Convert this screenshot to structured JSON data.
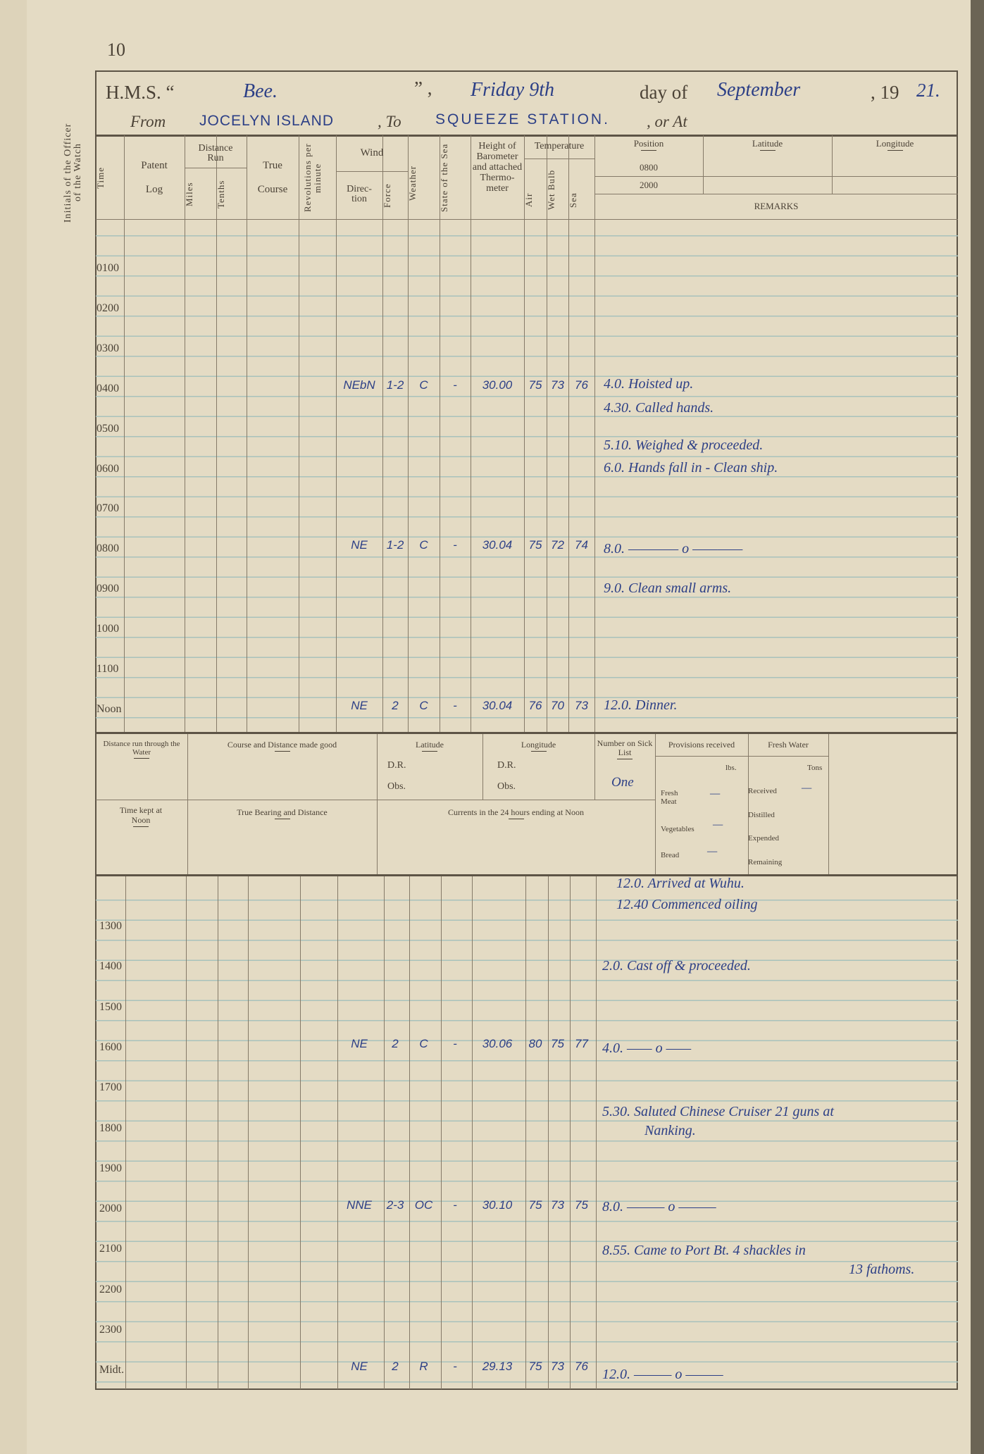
{
  "page_number": "10",
  "side_label": "Initials of the Officer of the Watch",
  "title": {
    "hms_label": "H.M.S. “",
    "ship_name": "Bee.",
    "close_quote": "” ,",
    "weekday_date": "Friday 9th",
    "day_of_label": "day of",
    "month": "September",
    "year_prefix": ", 19",
    "year_suffix": "21."
  },
  "route": {
    "from_label": "From",
    "from_value": "JOCELYN ISLAND",
    "to_label": ", To",
    "to_value": "SQUEEZE STATION.",
    "or_at_label": ", or At"
  },
  "headers": {
    "time": "Time",
    "patent_log": "Patent",
    "patent_log2": "Log",
    "distance_run": "Distance Run",
    "miles": "Miles",
    "tenths": "Tenths",
    "true_course": "True",
    "true_course2": "Course",
    "revolutions": "Revolutions per minute",
    "wind": "Wind",
    "direction": "Direc-tion",
    "force": "Force",
    "weather": "Weather",
    "state_of_sea": "State of the Sea",
    "barometer": "Height of Barometer and attached Thermo-meter",
    "temperature": "Temperature",
    "air": "Air",
    "wet_bulb": "Wet Bulb",
    "sea": "Sea",
    "position": "Position",
    "pos_0800": "0800",
    "pos_2000": "2000",
    "latitude": "Latitude",
    "longitude": "Longitude",
    "remarks": "REMARKS"
  },
  "hours_am": [
    "0100",
    "0200",
    "0300",
    "0400",
    "0500",
    "0600",
    "0700",
    "0800",
    "0900",
    "1000",
    "1100",
    "Noon"
  ],
  "hours_pm": [
    "1300",
    "1400",
    "1500",
    "1600",
    "1700",
    "1800",
    "1900",
    "2000",
    "2100",
    "2200",
    "2300",
    "Midt."
  ],
  "readings": [
    {
      "hour": "0400",
      "direction": "NEbN",
      "force": "1-2",
      "weather": "C",
      "sea": "-",
      "barometer": "30.00",
      "air": "75",
      "wet_bulb": "73",
      "sea_temp": "76"
    },
    {
      "hour": "0800",
      "direction": "NE",
      "force": "1-2",
      "weather": "C",
      "sea": "-",
      "barometer": "30.04",
      "air": "75",
      "wet_bulb": "72",
      "sea_temp": "74"
    },
    {
      "hour": "Noon",
      "direction": "NE",
      "force": "2",
      "weather": "C",
      "sea": "-",
      "barometer": "30.04",
      "air": "76",
      "wet_bulb": "70",
      "sea_temp": "73"
    },
    {
      "hour": "1600",
      "direction": "NE",
      "force": "2",
      "weather": "C",
      "sea": "-",
      "barometer": "30.06",
      "air": "80",
      "wet_bulb": "75",
      "sea_temp": "77"
    },
    {
      "hour": "2000",
      "direction": "NNE",
      "force": "2-3",
      "weather": "OC",
      "sea": "-",
      "barometer": "30.10",
      "air": "75",
      "wet_bulb": "73",
      "sea_temp": "75"
    },
    {
      "hour": "Midt.",
      "direction": "NE",
      "force": "2",
      "weather": "R",
      "sea": "-",
      "barometer": "29.13",
      "air": "75",
      "wet_bulb": "73",
      "sea_temp": "76"
    }
  ],
  "remarks": [
    "4.0. Hoisted up.",
    "4.30. Called hands.",
    "5.10. Weighed & proceeded.",
    "6.0. Hands fall in - Clean ship.",
    "8.0. ———— o ————",
    "9.0. Clean small arms.",
    "12.0. Dinner.",
    "12.0. Arrived at Wuhu.",
    "12.40 Commenced oiling",
    "2.0. Cast off & proceeded.",
    "4.0. —— o ——",
    "5.30. Saluted Chinese Cruiser 21 guns at",
    "Nanking.",
    "8.0. ——— o ———",
    "8.55. Came to Port Bt. 4 shackles in",
    "13 fathoms.",
    "12.0. ——— o ———"
  ],
  "noon_summary": {
    "distance_through_water": "Distance run through the Water",
    "course_distance": "Course and Distance made good",
    "latitude": "Latitude",
    "longitude": "Longitude",
    "dr": "D.R.",
    "obs": "Obs.",
    "sick_list": "Number on Sick List",
    "sick_list_value": "One",
    "provisions": "Provisions received",
    "lbs": "lbs.",
    "fresh_meat": "Fresh Meat",
    "fresh_meat_value": "—",
    "vegetables": "Vegetables",
    "vegetables_value": "—",
    "bread": "Bread",
    "bread_value": "—",
    "fresh_water": "Fresh Water",
    "tons": "Tons",
    "received": "Received",
    "received_value": "—",
    "distilled": "Distilled",
    "expended": "Expended",
    "remaining": "Remaining",
    "time_kept": "Time kept at Noon",
    "true_bearing": "True Bearing and Distance",
    "currents": "Currents in the 24 hours ending at Noon"
  },
  "colors": {
    "ink": "#2c3f86",
    "paper": "#e4dbc4",
    "print": "#4b4236",
    "ruling": "#a8c2bc"
  }
}
